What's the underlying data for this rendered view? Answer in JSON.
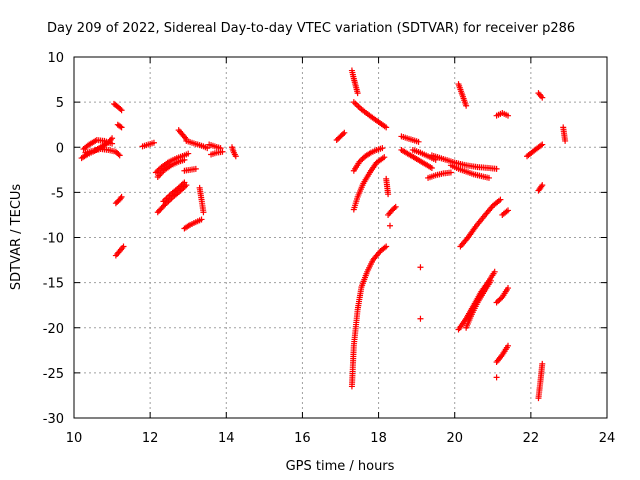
{
  "chart_data": {
    "type": "scatter",
    "title": "Day 209 of 2022, Sidereal Day-to-day VTEC variation (SDTVAR) for receiver p286",
    "xlabel": "GPS time / hours",
    "ylabel": "SDTVAR / TECUs",
    "xlim": [
      10,
      24
    ],
    "ylim": [
      -30,
      10
    ],
    "xticks": [
      "10",
      "12",
      "14",
      "16",
      "18",
      "20",
      "22",
      "24"
    ],
    "yticks": [
      "10",
      "5",
      "0",
      "-5",
      "-10",
      "-15",
      "-20",
      "-25",
      "-30"
    ],
    "grid": true,
    "marker": "plus",
    "color": "#ff0000",
    "segments": [
      {
        "x": [
          10.25,
          10.4,
          10.6,
          10.8,
          11.0
        ],
        "y": [
          -0.2,
          0.3,
          0.8,
          0.7,
          0.4
        ]
      },
      {
        "x": [
          10.3,
          10.5,
          10.7,
          10.9,
          11.1,
          11.2
        ],
        "y": [
          -0.6,
          -0.4,
          -0.2,
          -0.3,
          -0.5,
          -0.9
        ]
      },
      {
        "x": [
          10.2,
          10.35,
          10.5,
          10.7,
          10.9,
          11.0
        ],
        "y": [
          -1.2,
          -0.8,
          -0.5,
          0.0,
          0.5,
          1.0
        ]
      },
      {
        "x": [
          11.05,
          11.15,
          11.25
        ],
        "y": [
          4.8,
          4.5,
          4.1
        ]
      },
      {
        "x": [
          11.15,
          11.25
        ],
        "y": [
          2.5,
          2.2
        ]
      },
      {
        "x": [
          11.1,
          11.2,
          11.25
        ],
        "y": [
          -6.2,
          -5.8,
          -5.5
        ]
      },
      {
        "x": [
          11.1,
          11.2,
          11.3
        ],
        "y": [
          -12.0,
          -11.5,
          -11.0
        ]
      },
      {
        "x": [
          11.8,
          11.95,
          12.1
        ],
        "y": [
          0.1,
          0.3,
          0.5
        ]
      },
      {
        "x": [
          12.15,
          12.3,
          12.5,
          12.7,
          12.9,
          13.0
        ],
        "y": [
          -2.8,
          -2.2,
          -1.6,
          -1.2,
          -0.9,
          -0.7
        ]
      },
      {
        "x": [
          12.2,
          12.35,
          12.55,
          12.75,
          12.9
        ],
        "y": [
          -3.3,
          -2.6,
          -2.0,
          -1.6,
          -1.4
        ]
      },
      {
        "x": [
          12.2,
          12.4,
          12.6,
          12.8,
          12.95
        ],
        "y": [
          -7.2,
          -6.3,
          -5.5,
          -4.8,
          -4.2
        ]
      },
      {
        "x": [
          12.35,
          12.55,
          12.75,
          12.9
        ],
        "y": [
          -6.0,
          -5.2,
          -4.5,
          -3.9
        ]
      },
      {
        "x": [
          12.75,
          12.85,
          12.95
        ],
        "y": [
          1.9,
          1.4,
          0.9
        ]
      },
      {
        "x": [
          12.95,
          13.1,
          13.25,
          13.4,
          13.5
        ],
        "y": [
          0.7,
          0.5,
          0.3,
          0.1,
          -0.1
        ]
      },
      {
        "x": [
          12.9,
          13.05,
          13.2,
          13.35
        ],
        "y": [
          -9.0,
          -8.6,
          -8.3,
          -8.0
        ]
      },
      {
        "x": [
          12.9,
          13.05,
          13.2
        ],
        "y": [
          -2.6,
          -2.5,
          -2.4
        ]
      },
      {
        "x": [
          13.3,
          13.35,
          13.4
        ],
        "y": [
          -4.5,
          -5.8,
          -7.2
        ]
      },
      {
        "x": [
          13.55,
          13.7,
          13.85
        ],
        "y": [
          0.3,
          0.1,
          -0.1
        ]
      },
      {
        "x": [
          13.6,
          13.75,
          13.9
        ],
        "y": [
          -0.8,
          -0.6,
          -0.5
        ]
      },
      {
        "x": [
          14.15,
          14.2,
          14.25
        ],
        "y": [
          0.0,
          -0.6,
          -1.0
        ]
      },
      {
        "x": [
          16.9,
          17.0,
          17.1
        ],
        "y": [
          0.8,
          1.2,
          1.6
        ]
      },
      {
        "x": [
          17.3,
          17.35,
          17.4,
          17.45
        ],
        "y": [
          8.5,
          7.6,
          6.8,
          6.0
        ]
      },
      {
        "x": [
          17.35,
          17.55,
          17.8,
          18.0,
          18.2
        ],
        "y": [
          5.0,
          4.2,
          3.4,
          2.8,
          2.2
        ]
      },
      {
        "x": [
          17.35,
          17.5,
          17.65,
          17.8,
          17.95,
          18.1
        ],
        "y": [
          -2.6,
          -1.6,
          -1.0,
          -0.6,
          -0.3,
          -0.1
        ]
      },
      {
        "x": [
          17.35,
          17.45,
          17.6,
          17.8,
          17.95,
          18.15
        ],
        "y": [
          -6.9,
          -5.5,
          -4.0,
          -2.6,
          -1.7,
          -1.1
        ]
      },
      {
        "x": [
          17.3,
          17.35,
          17.45,
          17.55,
          17.7,
          17.85,
          18.05,
          18.2
        ],
        "y": [
          -26.5,
          -22.0,
          -18.0,
          -15.5,
          -13.8,
          -12.5,
          -11.5,
          -11.0
        ]
      },
      {
        "x": [
          18.2,
          18.25
        ],
        "y": [
          -3.5,
          -5.2
        ]
      },
      {
        "x": [
          18.25,
          18.35,
          18.45
        ],
        "y": [
          -7.5,
          -7.0,
          -6.6
        ]
      },
      {
        "x": [
          18.3
        ],
        "y": [
          -8.7
        ]
      },
      {
        "x": [
          18.6,
          18.75,
          18.9,
          19.05
        ],
        "y": [
          1.2,
          1.0,
          0.8,
          0.6
        ]
      },
      {
        "x": [
          18.6,
          18.8,
          19.0,
          19.2,
          19.4
        ],
        "y": [
          -0.3,
          -0.8,
          -1.3,
          -1.8,
          -2.3
        ]
      },
      {
        "x": [
          18.9,
          19.1,
          19.3,
          19.5
        ],
        "y": [
          -0.3,
          -0.6,
          -1.0,
          -1.4
        ]
      },
      {
        "x": [
          19.1
        ],
        "y": [
          -13.3
        ]
      },
      {
        "x": [
          19.1
        ],
        "y": [
          -19.0
        ]
      },
      {
        "x": [
          19.3,
          19.5,
          19.7,
          19.9
        ],
        "y": [
          -3.4,
          -3.1,
          -2.9,
          -2.8
        ]
      },
      {
        "x": [
          19.4,
          19.7,
          20.0,
          20.3,
          20.6,
          20.9,
          21.1
        ],
        "y": [
          -0.9,
          -1.3,
          -1.7,
          -2.0,
          -2.2,
          -2.3,
          -2.4
        ]
      },
      {
        "x": [
          19.9,
          20.1,
          20.3,
          20.5,
          20.7,
          20.9
        ],
        "y": [
          -2.0,
          -2.4,
          -2.7,
          -3.0,
          -3.2,
          -3.4
        ]
      },
      {
        "x": [
          20.1,
          20.2,
          20.3
        ],
        "y": [
          7.0,
          5.8,
          4.6
        ]
      },
      {
        "x": [
          20.15,
          20.35,
          20.55,
          20.8,
          21.0,
          21.2
        ],
        "y": [
          -11.0,
          -10.0,
          -8.8,
          -7.5,
          -6.5,
          -5.8
        ]
      },
      {
        "x": [
          21.25,
          21.4
        ],
        "y": [
          -7.5,
          -7.0
        ]
      },
      {
        "x": [
          20.1,
          20.3,
          20.5,
          20.7,
          20.9,
          21.05
        ],
        "y": [
          -20.2,
          -19.0,
          -17.5,
          -16.0,
          -14.8,
          -13.8
        ]
      },
      {
        "x": [
          20.3,
          20.45,
          20.6,
          20.8,
          20.95
        ],
        "y": [
          -20.0,
          -18.5,
          -17.2,
          -15.8,
          -14.8
        ]
      },
      {
        "x": [
          21.1,
          21.25,
          21.4
        ],
        "y": [
          -17.2,
          -16.6,
          -15.6
        ]
      },
      {
        "x": [
          21.1,
          21.25,
          21.4
        ],
        "y": [
          -23.8,
          -23.0,
          -22.0
        ]
      },
      {
        "x": [
          21.1
        ],
        "y": [
          -25.5
        ]
      },
      {
        "x": [
          21.1,
          21.25,
          21.4
        ],
        "y": [
          3.5,
          3.8,
          3.5
        ]
      },
      {
        "x": [
          21.9,
          22.05,
          22.2,
          22.3
        ],
        "y": [
          -1.0,
          -0.5,
          0.0,
          0.3
        ]
      },
      {
        "x": [
          22.2,
          22.3
        ],
        "y": [
          -4.8,
          -4.2
        ]
      },
      {
        "x": [
          22.2,
          22.3
        ],
        "y": [
          6.0,
          5.5
        ]
      },
      {
        "x": [
          22.2,
          22.25,
          22.3
        ],
        "y": [
          -27.8,
          -26.0,
          -24.0
        ]
      },
      {
        "x": [
          22.85,
          22.9
        ],
        "y": [
          2.2,
          0.7
        ]
      }
    ]
  }
}
